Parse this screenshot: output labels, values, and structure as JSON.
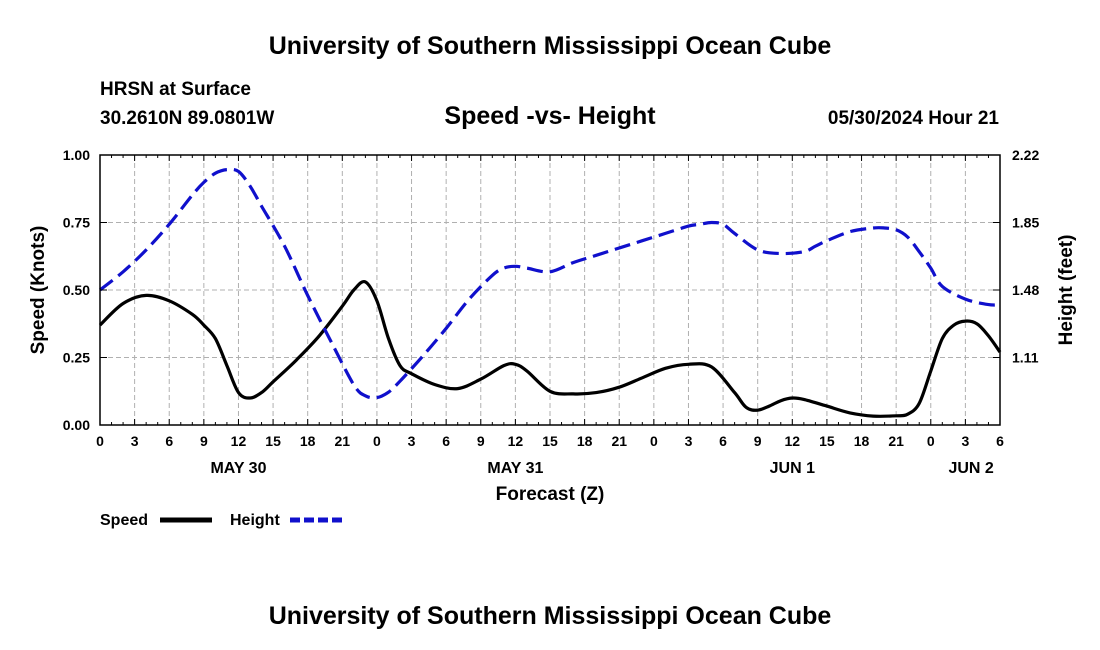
{
  "header": {
    "title_top": "University of Southern Mississippi Ocean Cube",
    "station": "HRSN at Surface",
    "coords": "30.2610N  89.0801W",
    "subtitle": "Speed -vs- Height",
    "timestamp": "05/30/2024 Hour 21",
    "title_bottom": "University of Southern Mississippi Ocean Cube"
  },
  "colors": {
    "speed": "#000000",
    "height": "#1010cc",
    "grid": "#b0b0b0"
  },
  "chart_data": {
    "type": "line",
    "title": "Speed -vs- Height",
    "xlabel": "Forecast (Z)",
    "ylabel_left": "Speed (Knots)",
    "ylabel_right": "Height (feet)",
    "x_unit": "hours from May 30 00Z",
    "xlim": [
      0,
      78
    ],
    "ylim_left": [
      0,
      1
    ],
    "ylim_right": [
      0.74,
      2.22
    ],
    "x_tick_labels": [
      "0",
      "3",
      "6",
      "9",
      "12",
      "15",
      "18",
      "21",
      "0",
      "3",
      "6",
      "9",
      "12",
      "15",
      "18",
      "21",
      "0",
      "3",
      "6",
      "9",
      "12",
      "15",
      "18",
      "21",
      "0",
      "3",
      "6"
    ],
    "day_labels": [
      {
        "label": "MAY 30",
        "hour": 12
      },
      {
        "label": "MAY 31",
        "hour": 36
      },
      {
        "label": "JUN 1",
        "hour": 60
      },
      {
        "label": "JUN 2",
        "hour": 75.5
      }
    ],
    "y_left_ticks": [
      "0.00",
      "0.25",
      "0.50",
      "0.75",
      "1.00"
    ],
    "y_left_values": [
      0,
      0.25,
      0.5,
      0.75,
      1.0
    ],
    "y_right_ticks": [
      "1.11",
      "1.48",
      "1.85",
      "2.22"
    ],
    "y_right_values": [
      1.11,
      1.48,
      1.85,
      2.22
    ],
    "legend": [
      {
        "name": "Speed",
        "style": "solid"
      },
      {
        "name": "Height",
        "style": "dashed"
      }
    ],
    "series": [
      {
        "name": "Speed",
        "axis": "left",
        "x": [
          0,
          2,
          4,
          6,
          8,
          9,
          10,
          11,
          12,
          13,
          14,
          15,
          17,
          19,
          21,
          22,
          23,
          24,
          25,
          26,
          27,
          29,
          31,
          33,
          35,
          36,
          37,
          39,
          41,
          43,
          45,
          47,
          49,
          51,
          53,
          55,
          56,
          57,
          58,
          59,
          60,
          61,
          63,
          65,
          67,
          69,
          70,
          71,
          72,
          73,
          74,
          75,
          76,
          77,
          78
        ],
        "values": [
          0.37,
          0.45,
          0.48,
          0.46,
          0.41,
          0.37,
          0.32,
          0.22,
          0.12,
          0.1,
          0.12,
          0.16,
          0.24,
          0.33,
          0.44,
          0.5,
          0.53,
          0.46,
          0.32,
          0.22,
          0.19,
          0.15,
          0.135,
          0.17,
          0.22,
          0.225,
          0.2,
          0.125,
          0.115,
          0.12,
          0.14,
          0.175,
          0.21,
          0.225,
          0.215,
          0.12,
          0.065,
          0.055,
          0.07,
          0.09,
          0.1,
          0.095,
          0.07,
          0.045,
          0.033,
          0.034,
          0.04,
          0.08,
          0.2,
          0.32,
          0.37,
          0.385,
          0.375,
          0.33,
          0.27
        ]
      },
      {
        "name": "Height",
        "axis": "right",
        "x": [
          0,
          2,
          4,
          6,
          8,
          9,
          10,
          11,
          12,
          13,
          14,
          16,
          18,
          20,
          22,
          23,
          24,
          25,
          26,
          28,
          30,
          32,
          34,
          35,
          36,
          37,
          39,
          41,
          43,
          45,
          47,
          49,
          51,
          52,
          53,
          54,
          55,
          57,
          59,
          61,
          62,
          63,
          65,
          67,
          68,
          69,
          70,
          71,
          72,
          73,
          75,
          77,
          78
        ],
        "values": [
          1.48,
          1.58,
          1.7,
          1.84,
          2.0,
          2.07,
          2.12,
          2.14,
          2.13,
          2.05,
          1.94,
          1.72,
          1.45,
          1.2,
          0.96,
          0.9,
          0.89,
          0.92,
          0.98,
          1.12,
          1.27,
          1.43,
          1.56,
          1.6,
          1.61,
          1.6,
          1.58,
          1.63,
          1.67,
          1.71,
          1.75,
          1.79,
          1.83,
          1.84,
          1.85,
          1.84,
          1.79,
          1.7,
          1.68,
          1.69,
          1.72,
          1.75,
          1.8,
          1.82,
          1.82,
          1.81,
          1.77,
          1.69,
          1.6,
          1.5,
          1.43,
          1.4,
          1.4
        ]
      }
    ]
  }
}
